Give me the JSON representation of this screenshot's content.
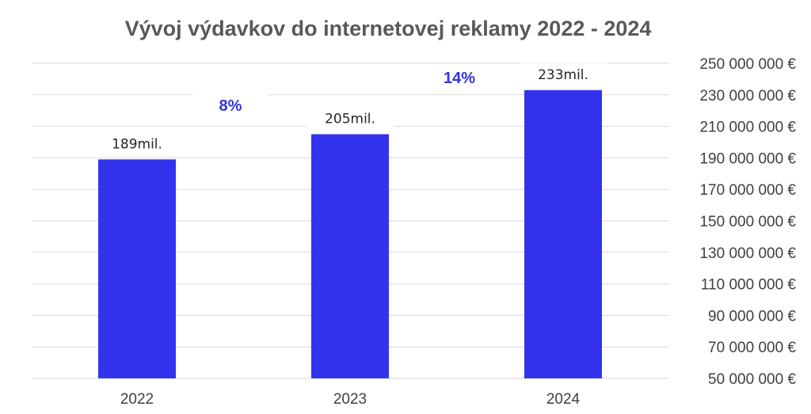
{
  "chart_data": {
    "type": "bar",
    "title": "Vývoj výdavkov do internetovej reklamy 2022 - 2024",
    "categories": [
      "2022",
      "2023",
      "2024"
    ],
    "values": [
      189000000,
      205000000,
      233000000
    ],
    "data_labels": [
      "189mil.",
      "205mil.",
      "233mil."
    ],
    "growth_labels": [
      "8%",
      "14%"
    ],
    "ylim": [
      50000000,
      250000000
    ],
    "yticks": [
      50000000,
      70000000,
      90000000,
      110000000,
      130000000,
      150000000,
      170000000,
      190000000,
      210000000,
      230000000,
      250000000
    ],
    "ytick_labels": [
      "50 000 000 €",
      "70 000 000 €",
      "90 000 000 €",
      "110 000 000 €",
      "130 000 000 €",
      "150 000 000 €",
      "170 000 000 €",
      "190 000 000 €",
      "210 000 000 €",
      "230 000 000 €",
      "250 000 000 €"
    ],
    "yaxis_position": "right",
    "grid": true,
    "bar_color": "#3333ee",
    "growth_color": "#3333e0"
  }
}
